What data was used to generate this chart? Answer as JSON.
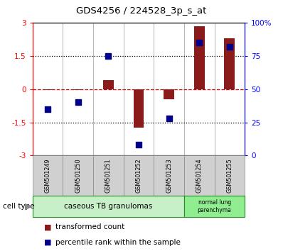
{
  "title": "GDS4256 / 224528_3p_s_at",
  "samples": [
    "GSM501249",
    "GSM501250",
    "GSM501251",
    "GSM501252",
    "GSM501253",
    "GSM501254",
    "GSM501255"
  ],
  "transformed_count": [
    -0.05,
    -0.05,
    0.4,
    -1.75,
    -0.45,
    2.85,
    2.3
  ],
  "percentile_rank": [
    35,
    40,
    75,
    8,
    28,
    85,
    82
  ],
  "ylim_left": [
    -3,
    3
  ],
  "yticks_left": [
    -3,
    -1.5,
    0,
    1.5,
    3
  ],
  "ytick_labels_left": [
    "-3",
    "-1.5",
    "0",
    "1.5",
    "3"
  ],
  "yticks_right": [
    0,
    25,
    50,
    75,
    100
  ],
  "ytick_labels_right": [
    "0",
    "25",
    "50",
    "75",
    "100%"
  ],
  "bar_color": "#8B1A1A",
  "dot_color": "#00008B",
  "hline_color": "#CC0000",
  "legend_bar_label": "transformed count",
  "legend_dot_label": "percentile rank within the sample",
  "cell_type_label": "cell type",
  "bar_width": 0.35,
  "group1_label": "caseous TB granulomas",
  "group2_label": "normal lung\nparenchyma",
  "group1_color": "#c8f0c8",
  "group2_color": "#90EE90",
  "sample_box_color": "#d0d0d0",
  "sample_box_edge": "#888888"
}
